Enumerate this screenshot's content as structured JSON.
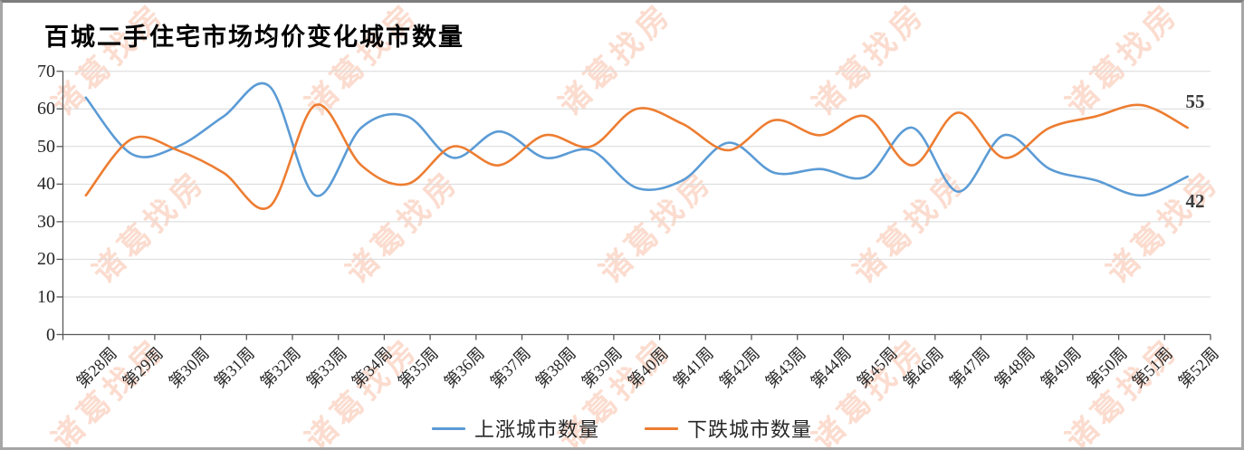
{
  "watermark": {
    "text": "诸葛找房"
  },
  "chart_data": {
    "type": "line",
    "title": "百城二手住宅市场均价变化城市数量",
    "categories": [
      "第28周",
      "第29周",
      "第30周",
      "第31周",
      "第32周",
      "第33周",
      "第34周",
      "第35周",
      "第36周",
      "第37周",
      "第38周",
      "第39周",
      "第40周",
      "第41周",
      "第42周",
      "第43周",
      "第44周",
      "第45周",
      "第46周",
      "第47周",
      "第48周",
      "第49周",
      "第50周",
      "第51周",
      "第52周"
    ],
    "series": [
      {
        "name": "上涨城市数量",
        "color": "#5B9BD5",
        "values": [
          63,
          48,
          50,
          58,
          66,
          37,
          55,
          58,
          47,
          54,
          47,
          49,
          39,
          41,
          51,
          43,
          44,
          42,
          55,
          38,
          53,
          44,
          41,
          37,
          42
        ],
        "last_value_label": "42"
      },
      {
        "name": "下跌城市数量",
        "color": "#ED7D31",
        "values": [
          37,
          52,
          49,
          43,
          34,
          61,
          45,
          40,
          50,
          45,
          53,
          50,
          60,
          56,
          49,
          57,
          53,
          58,
          45,
          59,
          47,
          55,
          58,
          61,
          55
        ],
        "last_value_label": "55"
      }
    ],
    "ylim": [
      0,
      70
    ],
    "yticks": [
      0,
      10,
      20,
      30,
      40,
      50,
      60,
      70
    ],
    "grid": true,
    "smooth": true,
    "legend_position": "bottom",
    "axis_color": "#595959",
    "gridline_color": "#D9D9D9"
  }
}
